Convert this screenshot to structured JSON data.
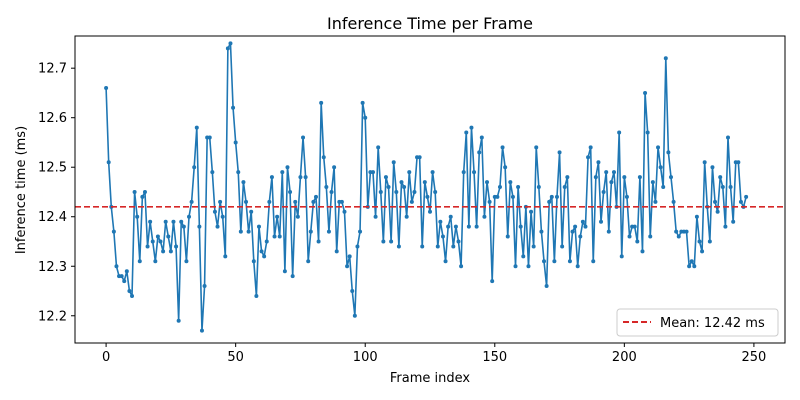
{
  "chart_data": {
    "type": "line",
    "title": "Inference Time per Frame",
    "xlabel": "Frame index",
    "ylabel": "Inference time (ms)",
    "xlim": [
      -12,
      262
    ],
    "ylim": [
      12.145,
      12.765
    ],
    "xticks": [
      0,
      50,
      100,
      150,
      200,
      250
    ],
    "yticks": [
      12.2,
      12.3,
      12.4,
      12.5,
      12.6,
      12.7
    ],
    "grid": false,
    "legend_position": "lower-right",
    "colors": {
      "series": "#1f77b4",
      "mean": "#d62728"
    },
    "mean_line": {
      "value": 12.42,
      "label": "Mean: 12.42 ms",
      "style": "dashed"
    },
    "series": [
      {
        "values": [
          12.66,
          12.51,
          12.42,
          12.37,
          12.3,
          12.28,
          12.28,
          12.27,
          12.29,
          12.25,
          12.24,
          12.45,
          12.4,
          12.31,
          12.44,
          12.45,
          12.34,
          12.39,
          12.35,
          12.31,
          12.36,
          12.35,
          12.33,
          12.39,
          12.36,
          12.33,
          12.39,
          12.34,
          12.19,
          12.39,
          12.38,
          12.31,
          12.4,
          12.43,
          12.5,
          12.58,
          12.38,
          12.17,
          12.26,
          12.56,
          12.56,
          12.49,
          12.41,
          12.38,
          12.43,
          12.4,
          12.32,
          12.74,
          12.75,
          12.62,
          12.55,
          12.49,
          12.37,
          12.47,
          12.43,
          12.37,
          12.41,
          12.31,
          12.24,
          12.38,
          12.33,
          12.32,
          12.35,
          12.43,
          12.48,
          12.36,
          12.4,
          12.36,
          12.49,
          12.29,
          12.5,
          12.45,
          12.28,
          12.43,
          12.4,
          12.48,
          12.56,
          12.48,
          12.31,
          12.37,
          12.43,
          12.44,
          12.35,
          12.63,
          12.52,
          12.46,
          12.37,
          12.45,
          12.5,
          12.33,
          12.43,
          12.43,
          12.41,
          12.3,
          12.32,
          12.25,
          12.2,
          12.34,
          12.37,
          12.63,
          12.6,
          12.42,
          12.49,
          12.49,
          12.4,
          12.54,
          12.45,
          12.35,
          12.48,
          12.46,
          12.35,
          12.51,
          12.45,
          12.34,
          12.47,
          12.46,
          12.4,
          12.49,
          12.43,
          12.45,
          12.52,
          12.52,
          12.34,
          12.47,
          12.44,
          12.41,
          12.49,
          12.45,
          12.34,
          12.39,
          12.36,
          12.31,
          12.38,
          12.4,
          12.34,
          12.38,
          12.35,
          12.3,
          12.49,
          12.57,
          12.38,
          12.58,
          12.49,
          12.38,
          12.53,
          12.56,
          12.4,
          12.47,
          12.43,
          12.27,
          12.44,
          12.44,
          12.46,
          12.54,
          12.5,
          12.36,
          12.47,
          12.44,
          12.3,
          12.46,
          12.38,
          12.32,
          12.42,
          12.3,
          12.41,
          12.34,
          12.54,
          12.46,
          12.37,
          12.31,
          12.26,
          12.43,
          12.44,
          12.31,
          12.44,
          12.53,
          12.34,
          12.46,
          12.48,
          12.31,
          12.37,
          12.38,
          12.3,
          12.36,
          12.39,
          12.38,
          12.52,
          12.54,
          12.31,
          12.48,
          12.51,
          12.39,
          12.45,
          12.49,
          12.37,
          12.47,
          12.49,
          12.42,
          12.57,
          12.32,
          12.48,
          12.44,
          12.36,
          12.38,
          12.38,
          12.35,
          12.48,
          12.33,
          12.65,
          12.57,
          12.36,
          12.47,
          12.43,
          12.54,
          12.5,
          12.46,
          12.72,
          12.53,
          12.48,
          12.43,
          12.37,
          12.36,
          12.37,
          12.37,
          12.37,
          12.3,
          12.31,
          12.3,
          12.4,
          12.35,
          12.33,
          12.51,
          12.42,
          12.35,
          12.5,
          12.43,
          12.41,
          12.48,
          12.46,
          12.38,
          12.56,
          12.46,
          12.39,
          12.51,
          12.51,
          12.43,
          12.42,
          12.44
        ]
      }
    ]
  }
}
